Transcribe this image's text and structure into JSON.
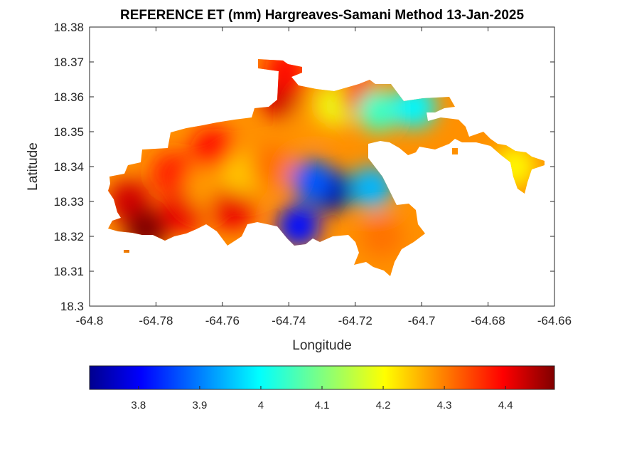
{
  "chart_data": {
    "type": "heatmap",
    "title": "REFERENCE ET (mm) Hargreaves-Samani Method  13-Jan-2025",
    "xlabel": "Longitude",
    "ylabel": "Latitude",
    "xlim": [
      -64.8,
      -64.66
    ],
    "ylim": [
      18.3,
      18.38
    ],
    "xticks": [
      -64.8,
      -64.78,
      -64.76,
      -64.74,
      -64.72,
      -64.7,
      -64.68,
      -64.66
    ],
    "xtick_labels": [
      "-64.8",
      "-64.78",
      "-64.76",
      "-64.74",
      "-64.72",
      "-64.7",
      "-64.68",
      "-64.66"
    ],
    "yticks": [
      18.3,
      18.31,
      18.32,
      18.33,
      18.34,
      18.35,
      18.36,
      18.37,
      18.38
    ],
    "ytick_labels": [
      "18.3",
      "18.31",
      "18.32",
      "18.33",
      "18.34",
      "18.35",
      "18.36",
      "18.37",
      "18.38"
    ],
    "colormap": "jet",
    "clim": [
      3.72,
      4.48
    ],
    "colorbar": {
      "orientation": "horizontal",
      "placement": "below",
      "ticks": [
        3.8,
        3.9,
        4.0,
        4.1,
        4.2,
        4.3,
        4.4
      ],
      "tick_labels": [
        "3.8",
        "3.9",
        "4",
        "4.1",
        "4.2",
        "4.3",
        "4.4"
      ]
    },
    "grid": false,
    "value_units": "mm",
    "regions": [
      {
        "lon": -64.788,
        "lat": 18.33,
        "value": 4.42
      },
      {
        "lon": -64.783,
        "lat": 18.322,
        "value": 4.48
      },
      {
        "lon": -64.775,
        "lat": 18.338,
        "value": 4.36
      },
      {
        "lon": -64.772,
        "lat": 18.327,
        "value": 4.4
      },
      {
        "lon": -64.763,
        "lat": 18.345,
        "value": 4.38
      },
      {
        "lon": -64.765,
        "lat": 18.334,
        "value": 4.27
      },
      {
        "lon": -64.757,
        "lat": 18.328,
        "value": 4.4
      },
      {
        "lon": -64.754,
        "lat": 18.338,
        "value": 4.24
      },
      {
        "lon": -64.745,
        "lat": 18.34,
        "value": 4.3
      },
      {
        "lon": -64.742,
        "lat": 18.36,
        "value": 4.42
      },
      {
        "lon": -64.741,
        "lat": 18.368,
        "value": 4.38
      },
      {
        "lon": -64.732,
        "lat": 18.355,
        "value": 4.27
      },
      {
        "lon": -64.725,
        "lat": 18.358,
        "value": 4.18
      },
      {
        "lon": -64.718,
        "lat": 18.36,
        "value": 4.35
      },
      {
        "lon": -64.713,
        "lat": 18.356,
        "value": 4.05
      },
      {
        "lon": -64.727,
        "lat": 18.333,
        "value": 3.74
      },
      {
        "lon": -64.733,
        "lat": 18.336,
        "value": 3.88
      },
      {
        "lon": -64.737,
        "lat": 18.323,
        "value": 3.82
      },
      {
        "lon": -64.715,
        "lat": 18.334,
        "value": 3.95
      },
      {
        "lon": -64.712,
        "lat": 18.32,
        "value": 4.3
      },
      {
        "lon": -64.702,
        "lat": 18.357,
        "value": 4.0
      },
      {
        "lon": -64.672,
        "lat": 18.34,
        "value": 4.2
      }
    ]
  }
}
